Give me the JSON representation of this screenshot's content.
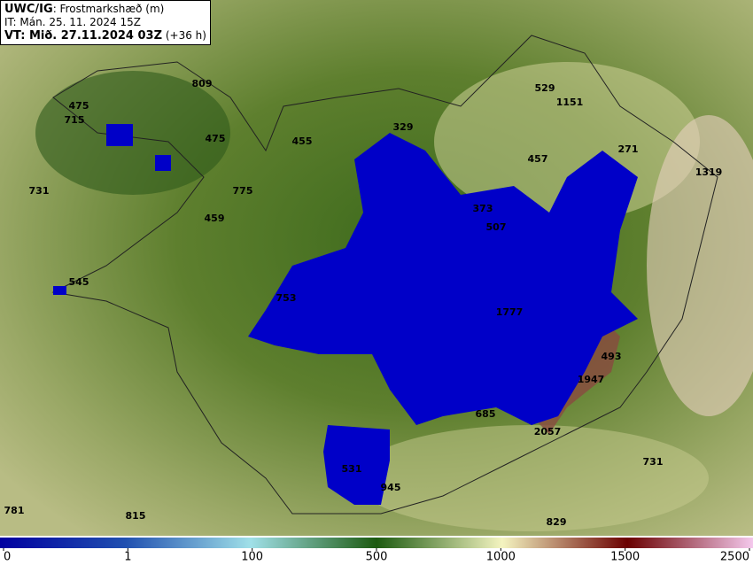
{
  "header": {
    "model": "UWC/IG",
    "parameter": ": Frostmarkshæð (m)",
    "init_time": "IT: Mán. 25. 11. 2024 15Z",
    "valid_time": "VT: Mið. 27.11.2024 03Z",
    "lead_time": " (+36 h)"
  },
  "point_labels": [
    809,
    475,
    715,
    475,
    455,
    731,
    775,
    459,
    545,
    753,
    529,
    1151,
    329,
    457,
    271,
    1319,
    373,
    507,
    1777,
    493,
    1947,
    685,
    2057,
    531,
    945,
    731,
    781,
    815,
    829
  ],
  "colorbar": {
    "ticks": [
      0,
      1,
      100,
      500,
      1000,
      1500,
      2500
    ]
  }
}
